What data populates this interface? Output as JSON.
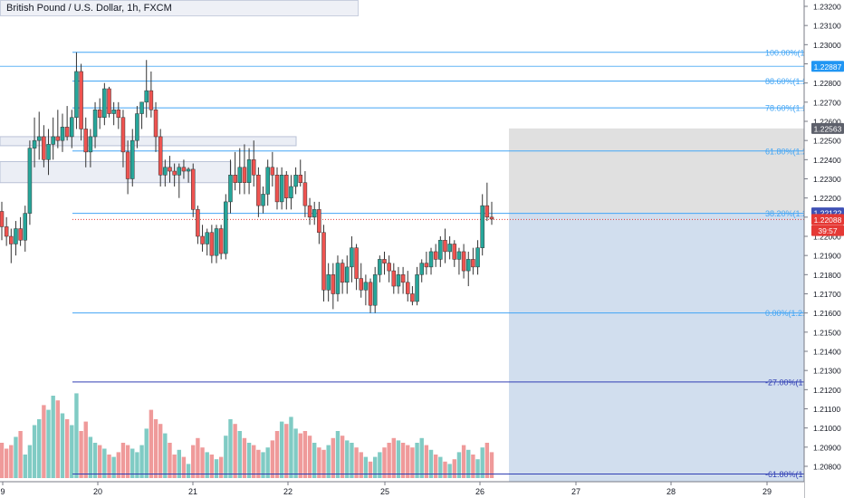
{
  "instrument": {
    "title": "British Pound / U.S. Dollar, 1h, FXCM"
  },
  "colors": {
    "up": "#26a69a",
    "down": "#ef5350",
    "up_volume": "#80cbc4",
    "down_volume": "#ef9a9a",
    "fib_line": "#42a5f5",
    "fib_ext_line": "#303fb4",
    "projection_gray": "#e0e0e0",
    "projection_blue": "#d1deee",
    "price_tag_blue": "#2196f3",
    "price_tag_gray": "#5d606b",
    "price_tag_navy": "#3f51b5",
    "price_tag_red": "#e53935"
  },
  "chart_data": {
    "type": "candlestick",
    "title": "British Pound / U.S. Dollar, 1h, FXCM",
    "x_ticks": [
      "9",
      "20",
      "21",
      "22",
      "25",
      "26",
      "27",
      "28",
      "29"
    ],
    "y_ticks": [
      "1.23200",
      "1.23100",
      "1.23000",
      "1.22900",
      "1.22800",
      "1.22700",
      "1.22600",
      "1.22500",
      "1.22400",
      "1.22300",
      "1.22200",
      "1.22100",
      "1.22000",
      "1.21900",
      "1.21800",
      "1.21700",
      "1.21600",
      "1.21500",
      "1.21400",
      "1.21300",
      "1.21200",
      "1.21100",
      "1.21000",
      "1.20900",
      "1.20800"
    ],
    "ylim": [
      1.2072,
      1.2326
    ],
    "fib_levels": [
      {
        "label": "100.00%(1.",
        "price": 1.2296,
        "style": "retracement"
      },
      {
        "label": "88.60%(1.2",
        "price": 1.2281,
        "style": "retracement"
      },
      {
        "label": "78.60%(1.2",
        "price": 1.2267,
        "style": "retracement"
      },
      {
        "label": "61.80%(1.2",
        "price": 1.22445,
        "style": "retracement"
      },
      {
        "label": "38.20%(1.2",
        "price": 1.2212,
        "style": "retracement"
      },
      {
        "label": "0.00%(1.21",
        "price": 1.216,
        "style": "retracement"
      },
      {
        "label": "-27.00%(1.",
        "price": 1.2124,
        "style": "extension"
      },
      {
        "label": "-61.80%(1.",
        "price": 1.2076,
        "style": "extension"
      }
    ],
    "price_tags": [
      {
        "label": "1.22887",
        "price": 1.22887,
        "color": "blue"
      },
      {
        "label": "1.22563",
        "price": 1.22563,
        "color": "gray"
      },
      {
        "label": "1.22122",
        "price": 1.22122,
        "color": "navy"
      },
      {
        "label": "1.22088",
        "price": 1.22088,
        "color": "red"
      },
      {
        "label": "39:57",
        "price": 1.2203,
        "color": "red"
      }
    ],
    "horizontal_lines": [
      {
        "price": 1.22887,
        "style": "solid-light-blue"
      },
      {
        "price": 1.22088,
        "style": "dotted-red"
      }
    ],
    "zones": [
      {
        "price_top": 1.2252,
        "price_bottom": 1.225
      },
      {
        "price_top": 1.2239,
        "price_bottom": 1.2228
      }
    ],
    "projection": {
      "x_start": "26",
      "x_end": "29",
      "price_top": 1.22563,
      "price_mid": 1.22122,
      "price_bottom": 1.2072
    },
    "candles": [
      {
        "o": 1.2213,
        "h": 1.2218,
        "l": 1.2198,
        "c": 1.2205
      },
      {
        "o": 1.2205,
        "h": 1.221,
        "l": 1.2195,
        "c": 1.22
      },
      {
        "o": 1.22,
        "h": 1.2204,
        "l": 1.2186,
        "c": 1.2196
      },
      {
        "o": 1.2196,
        "h": 1.2208,
        "l": 1.219,
        "c": 1.2204
      },
      {
        "o": 1.2204,
        "h": 1.221,
        "l": 1.2195,
        "c": 1.2198
      },
      {
        "o": 1.2198,
        "h": 1.2216,
        "l": 1.2192,
        "c": 1.2212
      },
      {
        "o": 1.2212,
        "h": 1.225,
        "l": 1.2206,
        "c": 1.2246
      },
      {
        "o": 1.2246,
        "h": 1.2262,
        "l": 1.2236,
        "c": 1.225
      },
      {
        "o": 1.225,
        "h": 1.2265,
        "l": 1.224,
        "c": 1.2252
      },
      {
        "o": 1.2252,
        "h": 1.2258,
        "l": 1.2236,
        "c": 1.224
      },
      {
        "o": 1.224,
        "h": 1.2256,
        "l": 1.2232,
        "c": 1.2248
      },
      {
        "o": 1.2248,
        "h": 1.2262,
        "l": 1.224,
        "c": 1.2252
      },
      {
        "o": 1.2252,
        "h": 1.2266,
        "l": 1.2246,
        "c": 1.225
      },
      {
        "o": 1.225,
        "h": 1.2264,
        "l": 1.2244,
        "c": 1.2257
      },
      {
        "o": 1.2257,
        "h": 1.2268,
        "l": 1.225,
        "c": 1.2252
      },
      {
        "o": 1.2252,
        "h": 1.2266,
        "l": 1.2246,
        "c": 1.2262
      },
      {
        "o": 1.2262,
        "h": 1.2296,
        "l": 1.2256,
        "c": 1.2286
      },
      {
        "o": 1.2286,
        "h": 1.229,
        "l": 1.225,
        "c": 1.2256
      },
      {
        "o": 1.2256,
        "h": 1.2262,
        "l": 1.2236,
        "c": 1.2244
      },
      {
        "o": 1.2244,
        "h": 1.2256,
        "l": 1.2236,
        "c": 1.2252
      },
      {
        "o": 1.2252,
        "h": 1.227,
        "l": 1.2246,
        "c": 1.2266
      },
      {
        "o": 1.2266,
        "h": 1.2272,
        "l": 1.2256,
        "c": 1.2262
      },
      {
        "o": 1.2262,
        "h": 1.228,
        "l": 1.2258,
        "c": 1.2277
      },
      {
        "o": 1.2277,
        "h": 1.2278,
        "l": 1.2262,
        "c": 1.2264
      },
      {
        "o": 1.2264,
        "h": 1.227,
        "l": 1.2258,
        "c": 1.2266
      },
      {
        "o": 1.2266,
        "h": 1.227,
        "l": 1.2256,
        "c": 1.2262
      },
      {
        "o": 1.2262,
        "h": 1.2266,
        "l": 1.2236,
        "c": 1.2244
      },
      {
        "o": 1.2244,
        "h": 1.225,
        "l": 1.2222,
        "c": 1.223
      },
      {
        "o": 1.223,
        "h": 1.2256,
        "l": 1.2226,
        "c": 1.225
      },
      {
        "o": 1.225,
        "h": 1.2268,
        "l": 1.2246,
        "c": 1.2264
      },
      {
        "o": 1.2264,
        "h": 1.227,
        "l": 1.2256,
        "c": 1.227
      },
      {
        "o": 1.227,
        "h": 1.2292,
        "l": 1.2262,
        "c": 1.2276
      },
      {
        "o": 1.2276,
        "h": 1.2286,
        "l": 1.2262,
        "c": 1.2266
      },
      {
        "o": 1.2266,
        "h": 1.227,
        "l": 1.2244,
        "c": 1.2252
      },
      {
        "o": 1.2252,
        "h": 1.2256,
        "l": 1.2226,
        "c": 1.2232
      },
      {
        "o": 1.2232,
        "h": 1.224,
        "l": 1.2226,
        "c": 1.2236
      },
      {
        "o": 1.2236,
        "h": 1.2242,
        "l": 1.2228,
        "c": 1.2234
      },
      {
        "o": 1.2234,
        "h": 1.2238,
        "l": 1.2226,
        "c": 1.2232
      },
      {
        "o": 1.2232,
        "h": 1.2238,
        "l": 1.222,
        "c": 1.2236
      },
      {
        "o": 1.2236,
        "h": 1.224,
        "l": 1.223,
        "c": 1.2234
      },
      {
        "o": 1.2234,
        "h": 1.2236,
        "l": 1.2228,
        "c": 1.2235
      },
      {
        "o": 1.2235,
        "h": 1.2238,
        "l": 1.221,
        "c": 1.2214
      },
      {
        "o": 1.2214,
        "h": 1.2216,
        "l": 1.2196,
        "c": 1.22
      },
      {
        "o": 1.22,
        "h": 1.2206,
        "l": 1.2192,
        "c": 1.2196
      },
      {
        "o": 1.2196,
        "h": 1.2204,
        "l": 1.219,
        "c": 1.2202
      },
      {
        "o": 1.2202,
        "h": 1.2206,
        "l": 1.2186,
        "c": 1.219
      },
      {
        "o": 1.219,
        "h": 1.2206,
        "l": 1.2186,
        "c": 1.2204
      },
      {
        "o": 1.2204,
        "h": 1.2206,
        "l": 1.2188,
        "c": 1.2191
      },
      {
        "o": 1.2191,
        "h": 1.2222,
        "l": 1.2188,
        "c": 1.2218
      },
      {
        "o": 1.2218,
        "h": 1.224,
        "l": 1.2212,
        "c": 1.2232
      },
      {
        "o": 1.2232,
        "h": 1.2244,
        "l": 1.2224,
        "c": 1.2228
      },
      {
        "o": 1.2228,
        "h": 1.2246,
        "l": 1.2222,
        "c": 1.2236
      },
      {
        "o": 1.2236,
        "h": 1.2248,
        "l": 1.2222,
        "c": 1.2228
      },
      {
        "o": 1.2228,
        "h": 1.2246,
        "l": 1.2222,
        "c": 1.224
      },
      {
        "o": 1.224,
        "h": 1.225,
        "l": 1.2226,
        "c": 1.2232
      },
      {
        "o": 1.2232,
        "h": 1.2236,
        "l": 1.221,
        "c": 1.2216
      },
      {
        "o": 1.2216,
        "h": 1.2226,
        "l": 1.2212,
        "c": 1.2222
      },
      {
        "o": 1.2222,
        "h": 1.224,
        "l": 1.2216,
        "c": 1.2236
      },
      {
        "o": 1.2236,
        "h": 1.2244,
        "l": 1.2226,
        "c": 1.2232
      },
      {
        "o": 1.2232,
        "h": 1.2236,
        "l": 1.2214,
        "c": 1.2218
      },
      {
        "o": 1.2218,
        "h": 1.2236,
        "l": 1.2214,
        "c": 1.2232
      },
      {
        "o": 1.2232,
        "h": 1.2234,
        "l": 1.2214,
        "c": 1.222
      },
      {
        "o": 1.222,
        "h": 1.2232,
        "l": 1.2214,
        "c": 1.2226
      },
      {
        "o": 1.2226,
        "h": 1.2236,
        "l": 1.2222,
        "c": 1.2232
      },
      {
        "o": 1.2232,
        "h": 1.224,
        "l": 1.2226,
        "c": 1.2228
      },
      {
        "o": 1.2228,
        "h": 1.2234,
        "l": 1.221,
        "c": 1.2216
      },
      {
        "o": 1.2216,
        "h": 1.222,
        "l": 1.2206,
        "c": 1.221
      },
      {
        "o": 1.221,
        "h": 1.2218,
        "l": 1.2206,
        "c": 1.2214
      },
      {
        "o": 1.2214,
        "h": 1.2218,
        "l": 1.2196,
        "c": 1.2202
      },
      {
        "o": 1.2202,
        "h": 1.2206,
        "l": 1.2166,
        "c": 1.2172
      },
      {
        "o": 1.2172,
        "h": 1.2186,
        "l": 1.2166,
        "c": 1.218
      },
      {
        "o": 1.218,
        "h": 1.2186,
        "l": 1.2162,
        "c": 1.217
      },
      {
        "o": 1.217,
        "h": 1.219,
        "l": 1.2166,
        "c": 1.2186
      },
      {
        "o": 1.2186,
        "h": 1.2188,
        "l": 1.217,
        "c": 1.2176
      },
      {
        "o": 1.2176,
        "h": 1.219,
        "l": 1.217,
        "c": 1.2184
      },
      {
        "o": 1.2184,
        "h": 1.22,
        "l": 1.2176,
        "c": 1.2194
      },
      {
        "o": 1.2194,
        "h": 1.2196,
        "l": 1.2172,
        "c": 1.2178
      },
      {
        "o": 1.2178,
        "h": 1.2186,
        "l": 1.2168,
        "c": 1.2172
      },
      {
        "o": 1.2172,
        "h": 1.218,
        "l": 1.2164,
        "c": 1.2176
      },
      {
        "o": 1.2176,
        "h": 1.2178,
        "l": 1.216,
        "c": 1.2164
      },
      {
        "o": 1.2164,
        "h": 1.2184,
        "l": 1.216,
        "c": 1.218
      },
      {
        "o": 1.218,
        "h": 1.219,
        "l": 1.2176,
        "c": 1.2188
      },
      {
        "o": 1.2188,
        "h": 1.2192,
        "l": 1.218,
        "c": 1.2186
      },
      {
        "o": 1.2186,
        "h": 1.219,
        "l": 1.2176,
        "c": 1.2182
      },
      {
        "o": 1.2182,
        "h": 1.2186,
        "l": 1.217,
        "c": 1.2174
      },
      {
        "o": 1.2174,
        "h": 1.2184,
        "l": 1.217,
        "c": 1.218
      },
      {
        "o": 1.218,
        "h": 1.2184,
        "l": 1.217,
        "c": 1.2176
      },
      {
        "o": 1.2176,
        "h": 1.2182,
        "l": 1.2166,
        "c": 1.217
      },
      {
        "o": 1.217,
        "h": 1.2174,
        "l": 1.2164,
        "c": 1.2166
      },
      {
        "o": 1.2166,
        "h": 1.2184,
        "l": 1.2164,
        "c": 1.218
      },
      {
        "o": 1.218,
        "h": 1.2188,
        "l": 1.2176,
        "c": 1.2186
      },
      {
        "o": 1.2186,
        "h": 1.2192,
        "l": 1.218,
        "c": 1.2184
      },
      {
        "o": 1.2184,
        "h": 1.2194,
        "l": 1.218,
        "c": 1.2192
      },
      {
        "o": 1.2192,
        "h": 1.2196,
        "l": 1.2184,
        "c": 1.2188
      },
      {
        "o": 1.2188,
        "h": 1.22,
        "l": 1.2184,
        "c": 1.2198
      },
      {
        "o": 1.2198,
        "h": 1.2204,
        "l": 1.2186,
        "c": 1.2192
      },
      {
        "o": 1.2192,
        "h": 1.22,
        "l": 1.2188,
        "c": 1.2196
      },
      {
        "o": 1.2196,
        "h": 1.2198,
        "l": 1.2184,
        "c": 1.2188
      },
      {
        "o": 1.2188,
        "h": 1.2194,
        "l": 1.218,
        "c": 1.2192
      },
      {
        "o": 1.2192,
        "h": 1.2196,
        "l": 1.2178,
        "c": 1.2182
      },
      {
        "o": 1.2182,
        "h": 1.2192,
        "l": 1.2174,
        "c": 1.2188
      },
      {
        "o": 1.2188,
        "h": 1.2194,
        "l": 1.218,
        "c": 1.2184
      },
      {
        "o": 1.2184,
        "h": 1.2198,
        "l": 1.218,
        "c": 1.2194
      },
      {
        "o": 1.2194,
        "h": 1.2222,
        "l": 1.219,
        "c": 1.2216
      },
      {
        "o": 1.2216,
        "h": 1.2228,
        "l": 1.2208,
        "c": 1.221
      },
      {
        "o": 1.221,
        "h": 1.2218,
        "l": 1.2206,
        "c": 1.2209
      }
    ],
    "volume": [
      0.3,
      0.25,
      0.28,
      0.35,
      0.4,
      0.2,
      0.28,
      0.45,
      0.5,
      0.62,
      0.58,
      0.7,
      0.66,
      0.55,
      0.5,
      0.45,
      0.72,
      0.4,
      0.48,
      0.35,
      0.3,
      0.28,
      0.25,
      0.2,
      0.18,
      0.22,
      0.3,
      0.28,
      0.25,
      0.22,
      0.28,
      0.42,
      0.58,
      0.5,
      0.46,
      0.38,
      0.3,
      0.2,
      0.24,
      0.18,
      0.12,
      0.28,
      0.34,
      0.26,
      0.22,
      0.2,
      0.16,
      0.18,
      0.36,
      0.5,
      0.46,
      0.4,
      0.34,
      0.3,
      0.28,
      0.24,
      0.22,
      0.26,
      0.32,
      0.4,
      0.48,
      0.46,
      0.52,
      0.42,
      0.38,
      0.4,
      0.36,
      0.3,
      0.26,
      0.24,
      0.28,
      0.34,
      0.4,
      0.36,
      0.32,
      0.3,
      0.26,
      0.22,
      0.18,
      0.14,
      0.18,
      0.22,
      0.26,
      0.3,
      0.34,
      0.32,
      0.3,
      0.28,
      0.26,
      0.3,
      0.34,
      0.28,
      0.24,
      0.2,
      0.18,
      0.14,
      0.12,
      0.16,
      0.22,
      0.28,
      0.24,
      0.2,
      0.16,
      0.26,
      0.3,
      0.22
    ]
  }
}
